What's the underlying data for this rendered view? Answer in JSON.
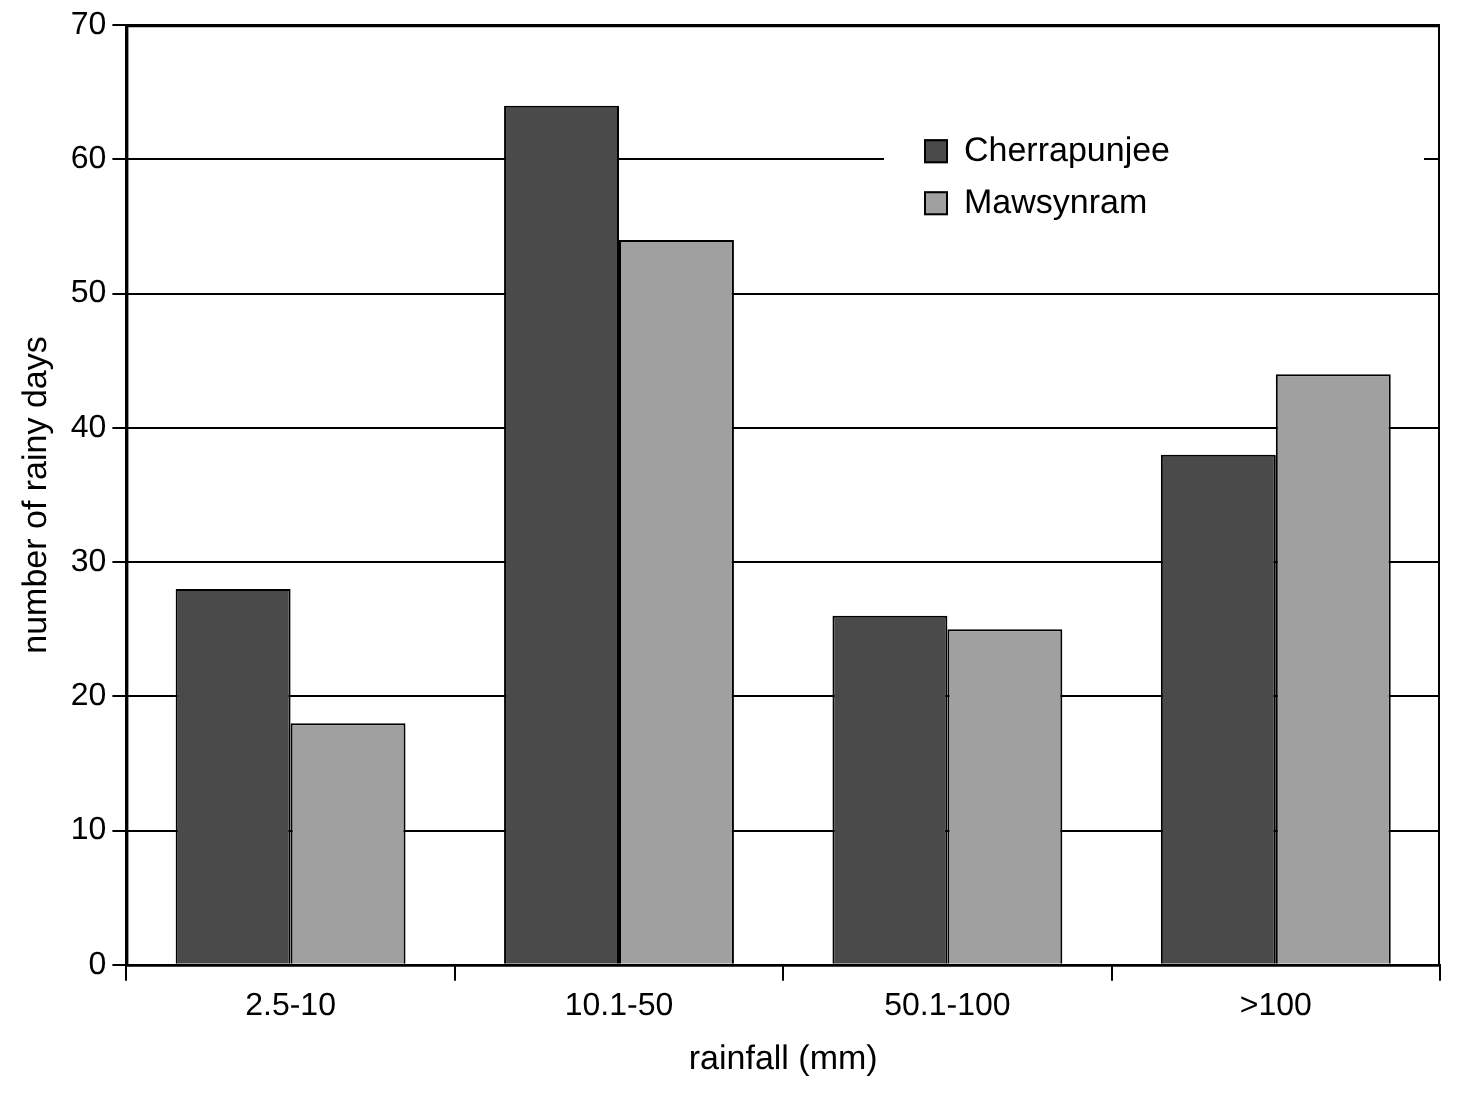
{
  "chart_data": {
    "type": "bar",
    "xlabel": "rainfall (mm)",
    "ylabel": "number of rainy days",
    "categories": [
      "2.5-10",
      "10.1-50",
      "50.1-100",
      ">100"
    ],
    "series": [
      {
        "name": "Cherrapunjee",
        "color": "#4a4a4a",
        "values": [
          28,
          64,
          26,
          38
        ]
      },
      {
        "name": "Mawsynram",
        "color": "#a0a0a0",
        "values": [
          18,
          54,
          25,
          44
        ]
      }
    ],
    "ylim": [
      0,
      70
    ],
    "yticks": [
      0,
      10,
      20,
      30,
      40,
      50,
      60,
      70
    ],
    "grid": "y",
    "legend": "top right"
  }
}
